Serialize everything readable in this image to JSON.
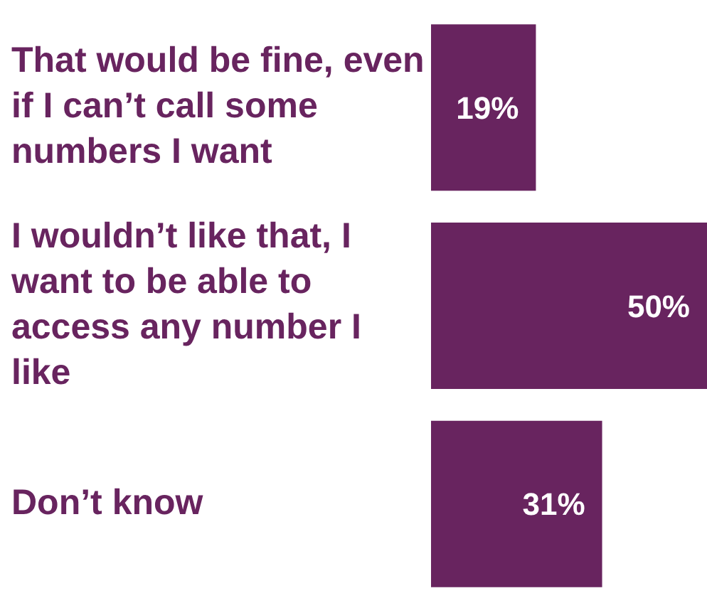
{
  "chart_data": {
    "type": "bar",
    "orientation": "horizontal",
    "categories": [
      "That would be fine, even if I can’t call some numbers I want",
      "I wouldn’t like that, I want to be able to access any number I like",
      "Don’t know"
    ],
    "values": [
      19,
      50,
      31
    ],
    "value_labels": [
      "19%",
      "50%",
      "31%"
    ],
    "color": "#68245f",
    "xlim": [
      0,
      50
    ],
    "tick_labels": "y"
  }
}
